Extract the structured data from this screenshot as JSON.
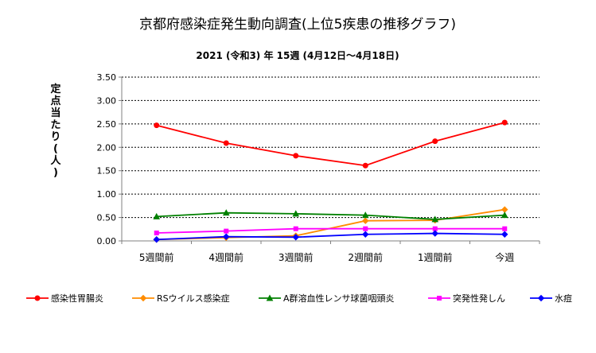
{
  "chart_data": {
    "type": "line",
    "title": "京都府感染症発生動向調査(上位5疾患の推移グラフ)",
    "subtitle": "2021 (令和3) 年 15週 (4月12日～4月18日)",
    "ylabel": "定点当たり(人)",
    "xlabel": "",
    "ylim": [
      0,
      3.5
    ],
    "yticks": [
      "0.00",
      "0.50",
      "1.00",
      "1.50",
      "2.00",
      "2.50",
      "3.00",
      "3.50"
    ],
    "grid": true,
    "legend_position": "bottom",
    "categories": [
      "5週間前",
      "4週間前",
      "3週間前",
      "2週間前",
      "1週間前",
      "今週"
    ],
    "series": [
      {
        "name": "感染性胃腸炎",
        "color": "#ff0000",
        "marker": "circle",
        "values": [
          2.47,
          2.09,
          1.82,
          1.61,
          2.13,
          2.53
        ]
      },
      {
        "name": "RSウイルス感染症",
        "color": "#ff8c00",
        "marker": "diamond",
        "values": [
          0.03,
          0.07,
          0.11,
          0.43,
          0.44,
          0.67
        ]
      },
      {
        "name": "A群溶血性レンサ球菌咽頭炎",
        "color": "#008000",
        "marker": "triangle",
        "values": [
          0.52,
          0.6,
          0.58,
          0.55,
          0.46,
          0.55
        ]
      },
      {
        "name": "突発性発しん",
        "color": "#ff00ff",
        "marker": "square",
        "values": [
          0.17,
          0.21,
          0.26,
          0.26,
          0.26,
          0.26
        ]
      },
      {
        "name": "水痘",
        "color": "#0000ff",
        "marker": "diamond",
        "values": [
          0.03,
          0.09,
          0.08,
          0.14,
          0.16,
          0.14
        ]
      }
    ]
  }
}
